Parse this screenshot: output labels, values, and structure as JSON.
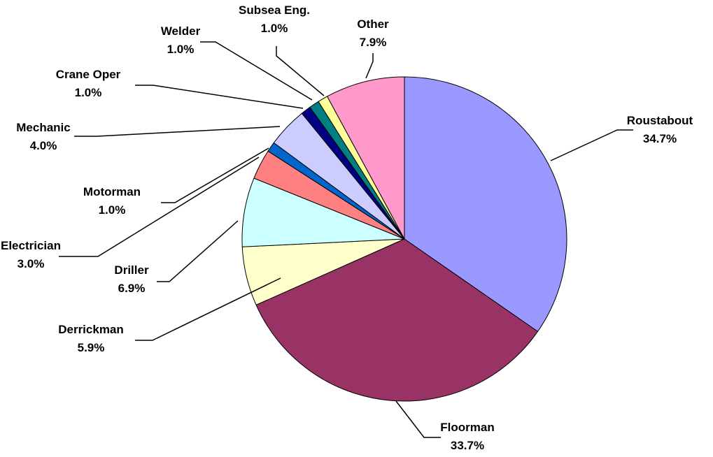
{
  "chart_data": {
    "type": "pie",
    "title": "",
    "start_angle_deg": 0,
    "direction": "clockwise",
    "slices": [
      {
        "label": "Roustabout",
        "value": 34.7,
        "value_label": "34.7%",
        "color": "#9999ff"
      },
      {
        "label": "Floorman",
        "value": 33.7,
        "value_label": "33.7%",
        "color": "#993366"
      },
      {
        "label": "Derrickman",
        "value": 5.9,
        "value_label": "5.9%",
        "color": "#ffffcc"
      },
      {
        "label": "Driller",
        "value": 6.9,
        "value_label": "6.9%",
        "color": "#ccffff"
      },
      {
        "label": "Electrician",
        "value": 3.0,
        "value_label": "3.0%",
        "color": "#ff8080"
      },
      {
        "label": "Motorman",
        "value": 1.0,
        "value_label": "1.0%",
        "color": "#0066cc"
      },
      {
        "label": "Mechanic",
        "value": 4.0,
        "value_label": "4.0%",
        "color": "#ccccff"
      },
      {
        "label": "Crane Oper",
        "value": 1.0,
        "value_label": "1.0%",
        "color": "#000080"
      },
      {
        "label": "Welder",
        "value": 1.0,
        "value_label": "1.0%",
        "color": "#008080"
      },
      {
        "label": "Subsea Eng.",
        "value": 1.0,
        "value_label": "1.0%",
        "color": "#ffff99"
      },
      {
        "label": "Other",
        "value": 7.9,
        "value_label": "7.9%",
        "color": "#ff99cc"
      }
    ]
  }
}
